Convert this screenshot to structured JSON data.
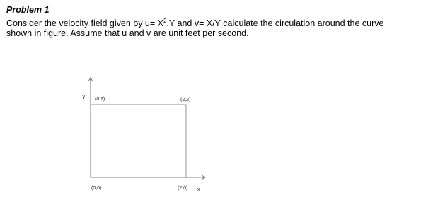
{
  "problem": {
    "title": "Problem 1",
    "statement": [
      "Consider the velocity field given by u= X",
      "2",
      ".Y and v= X/Y calculate the circulation around the curve",
      "shown in figure. Assume that u and v are unit feet per second."
    ]
  },
  "figure": {
    "y_axis_label": "Y",
    "x_axis_label": "x",
    "corners": [
      "(0,2)",
      "(2,2)",
      "(0,0)",
      "(2,0)"
    ]
  }
}
